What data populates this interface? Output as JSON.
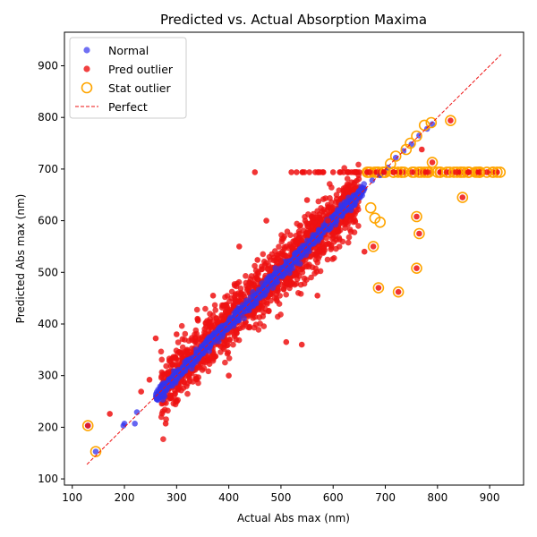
{
  "chart_data": {
    "type": "scatter",
    "title": "Predicted vs. Actual Absorption Maxima",
    "xlabel": "Actual Abs max (nm)",
    "ylabel": "Predicted Abs max (nm)",
    "xlim": [
      85,
      965
    ],
    "ylim": [
      88,
      965
    ],
    "xticks": [
      100,
      200,
      300,
      400,
      500,
      600,
      700,
      800,
      900
    ],
    "yticks": [
      100,
      200,
      300,
      400,
      500,
      600,
      700,
      800,
      900
    ],
    "grid": false,
    "legend_position": "top-left",
    "colors": {
      "normal": "#3333ee",
      "pred_outlier": "#ee1111",
      "stat_outlier": "#ffa500",
      "perfect": "#ee1111"
    },
    "series": [
      {
        "name": "Normal",
        "marker": "filled-circle",
        "description_points": [
          [
            262,
            268
          ],
          [
            275,
            278
          ],
          [
            290,
            292
          ],
          [
            305,
            306
          ],
          [
            320,
            322
          ],
          [
            338,
            336
          ],
          [
            355,
            352
          ],
          [
            372,
            375
          ],
          [
            390,
            388
          ],
          [
            410,
            408
          ],
          [
            428,
            430
          ],
          [
            445,
            444
          ],
          [
            462,
            465
          ],
          [
            480,
            478
          ],
          [
            498,
            500
          ],
          [
            515,
            512
          ],
          [
            532,
            535
          ],
          [
            550,
            548
          ],
          [
            568,
            570
          ],
          [
            585,
            583
          ],
          [
            602,
            605
          ],
          [
            620,
            618
          ],
          [
            635,
            638
          ],
          [
            648,
            650
          ],
          [
            660,
            662
          ],
          [
            675,
            678
          ],
          [
            690,
            688
          ],
          [
            705,
            703
          ],
          [
            720,
            722
          ],
          [
            735,
            735
          ],
          [
            750,
            748
          ],
          [
            765,
            765
          ],
          [
            780,
            778
          ],
          [
            790,
            787
          ],
          [
            198,
            203
          ],
          [
            200,
            207
          ],
          [
            220,
            207
          ],
          [
            224,
            229
          ],
          [
            145,
            153
          ],
          [
            130,
            203
          ]
        ]
      },
      {
        "name": "Pred outlier",
        "marker": "filled-circle",
        "description_points": [
          [
            130,
            203
          ],
          [
            172,
            226
          ],
          [
            232,
            269
          ],
          [
            248,
            292
          ],
          [
            260,
            372
          ],
          [
            279,
            207
          ],
          [
            300,
            380
          ],
          [
            320,
            350
          ],
          [
            340,
            410
          ],
          [
            360,
            330
          ],
          [
            370,
            455
          ],
          [
            390,
            360
          ],
          [
            400,
            300
          ],
          [
            420,
            550
          ],
          [
            450,
            694
          ],
          [
            455,
            524
          ],
          [
            472,
            600
          ],
          [
            500,
            520
          ],
          [
            510,
            365
          ],
          [
            520,
            694
          ],
          [
            530,
            694
          ],
          [
            540,
            360
          ],
          [
            545,
            694
          ],
          [
            550,
            640
          ],
          [
            560,
            590
          ],
          [
            570,
            455
          ],
          [
            580,
            694
          ],
          [
            590,
            600
          ],
          [
            600,
            694
          ],
          [
            610,
            580
          ],
          [
            620,
            694
          ],
          [
            630,
            694
          ],
          [
            640,
            694
          ],
          [
            650,
            694
          ],
          [
            660,
            540
          ],
          [
            670,
            694
          ],
          [
            677,
            550
          ],
          [
            687,
            470
          ],
          [
            690,
            694
          ],
          [
            725,
            462
          ],
          [
            760,
            508
          ],
          [
            760,
            608
          ],
          [
            765,
            575
          ],
          [
            770,
            738
          ],
          [
            790,
            713
          ],
          [
            825,
            794
          ],
          [
            848,
            645
          ]
        ]
      },
      {
        "name": "Stat outlier",
        "marker": "hollow-circle",
        "description_points": [
          [
            130,
            203
          ],
          [
            145,
            153
          ],
          [
            672,
            625
          ],
          [
            677,
            550
          ],
          [
            680,
            605
          ],
          [
            687,
            470
          ],
          [
            690,
            597
          ],
          [
            700,
            694
          ],
          [
            710,
            710
          ],
          [
            720,
            725
          ],
          [
            740,
            738
          ],
          [
            748,
            750
          ],
          [
            760,
            764
          ],
          [
            775,
            785
          ],
          [
            788,
            790
          ],
          [
            790,
            713
          ],
          [
            725,
            462
          ],
          [
            760,
            508
          ],
          [
            760,
            608
          ],
          [
            765,
            575
          ],
          [
            800,
            694
          ],
          [
            825,
            794
          ],
          [
            848,
            645
          ],
          [
            860,
            694
          ],
          [
            880,
            694
          ],
          [
            920,
            694
          ]
        ]
      },
      {
        "name": "Perfect",
        "marker": "dashed-line",
        "x": [
          128,
          922
        ],
        "y": [
          128,
          922
        ]
      }
    ]
  }
}
